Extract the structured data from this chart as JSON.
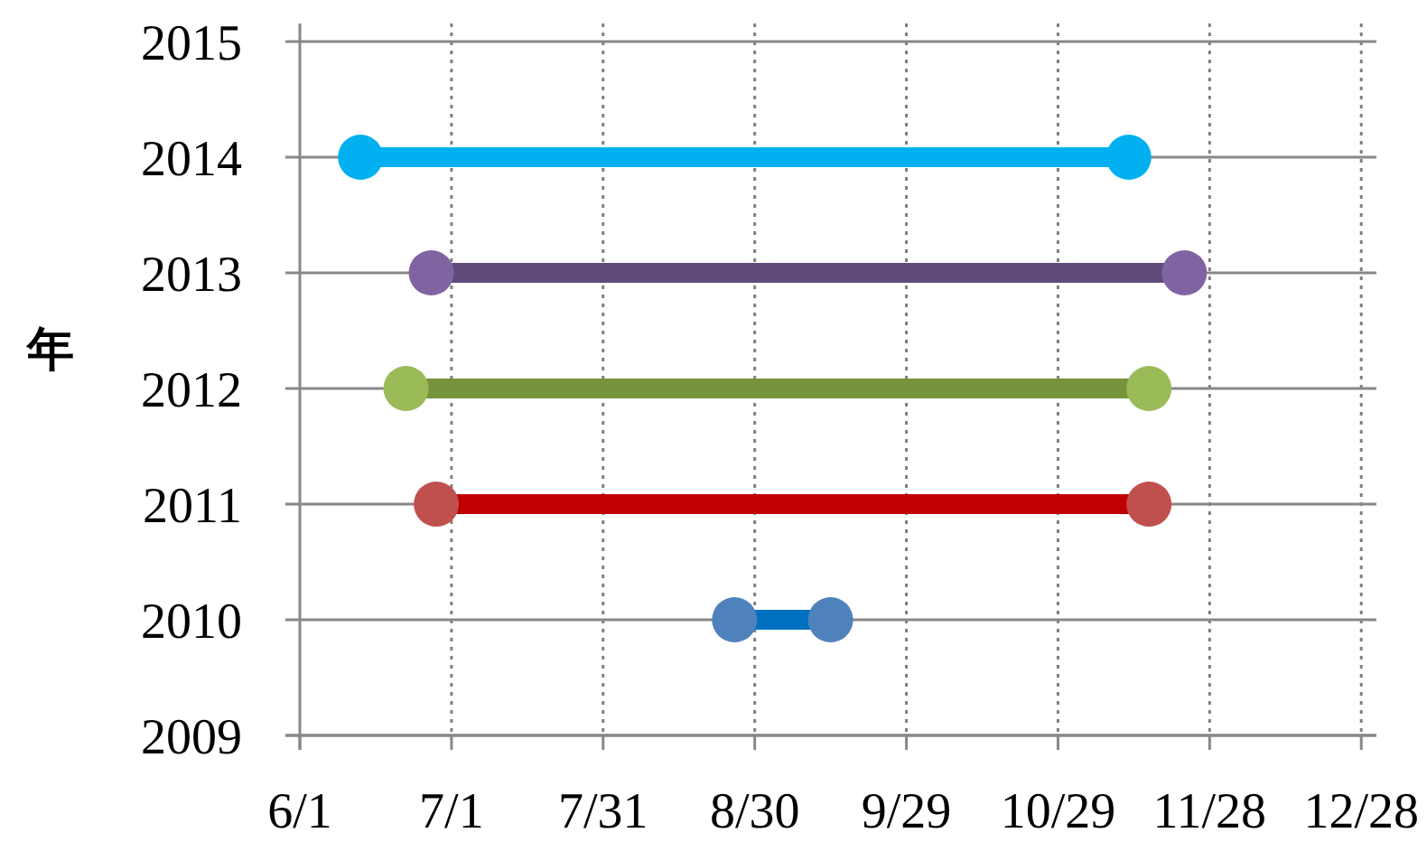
{
  "chart_data": {
    "type": "line",
    "ylabel": "年",
    "marker": "circle",
    "line_style": "solid",
    "grid": true,
    "xlim": [
      "--06-01",
      "--12-31"
    ],
    "xticks": [
      {
        "value": "--06-01",
        "label": "6/1"
      },
      {
        "value": "--07-01",
        "label": "7/1"
      },
      {
        "value": "--07-31",
        "label": "7/31"
      },
      {
        "value": "--08-30",
        "label": "8/30"
      },
      {
        "value": "--09-29",
        "label": "9/29"
      },
      {
        "value": "--10-29",
        "label": "10/29"
      },
      {
        "value": "--11-28",
        "label": "11/28"
      },
      {
        "value": "--12-28",
        "label": "12/28"
      }
    ],
    "ylim": [
      2009,
      2015
    ],
    "yticks": [
      2009,
      2010,
      2011,
      2012,
      2013,
      2014,
      2015
    ],
    "series": [
      {
        "color": "#0070c0",
        "colors": [
          "#4f81bd",
          "#4f81bd"
        ],
        "x": [
          "--08-26",
          "--09-14"
        ],
        "values": [
          2010,
          2010
        ]
      },
      {
        "color": "#c00000",
        "colors": [
          "#c0504d",
          "#c0504d"
        ],
        "x": [
          "--06-28",
          "--11-16"
        ],
        "values": [
          2011,
          2011
        ]
      },
      {
        "color": "#77933c",
        "colors": [
          "#9bbb59",
          "#9bbb59"
        ],
        "x": [
          "--06-22",
          "--11-16"
        ],
        "values": [
          2012,
          2012
        ]
      },
      {
        "color": "#604a7b",
        "colors": [
          "#8064a2",
          "#8064a2"
        ],
        "x": [
          "--06-27",
          "--11-23"
        ],
        "values": [
          2013,
          2013
        ]
      },
      {
        "color": "#00b0f0",
        "colors": [
          "#00b0f0",
          "#00b0f0"
        ],
        "x": [
          "--06-13",
          "--11-12"
        ],
        "values": [
          2014,
          2014
        ]
      }
    ]
  }
}
